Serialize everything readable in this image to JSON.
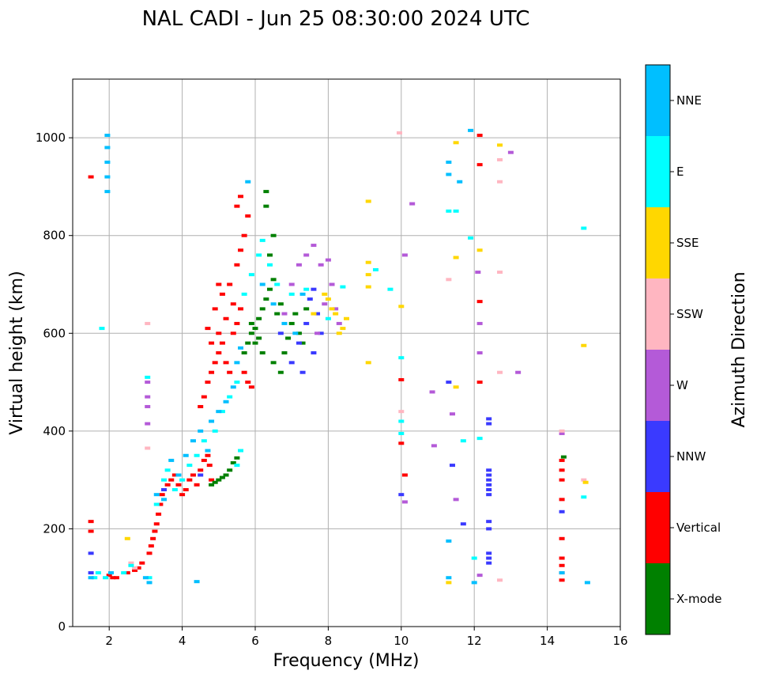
{
  "chart_data": {
    "type": "scatter",
    "title": "NAL CADI - Jun 25 08:30:00 2024 UTC",
    "xlabel": "Frequency (MHz)",
    "ylabel": "Virtual height (km)",
    "xlim": [
      1,
      16
    ],
    "ylim": [
      0,
      1120
    ],
    "xticks": [
      2,
      4,
      6,
      8,
      10,
      12,
      14,
      16
    ],
    "yticks": [
      0,
      200,
      400,
      600,
      800,
      1000
    ],
    "grid": true,
    "colorbar": {
      "label": "Azimuth Direction",
      "categories": [
        {
          "name": "X-mode",
          "color": "#008000"
        },
        {
          "name": "Vertical",
          "color": "#ff0000"
        },
        {
          "name": "NNW",
          "color": "#3a3aff"
        },
        {
          "name": "W",
          "color": "#b45ad8"
        },
        {
          "name": "SSW",
          "color": "#ffb6c1"
        },
        {
          "name": "SSE",
          "color": "#ffd700"
        },
        {
          "name": "E",
          "color": "#00ffff"
        },
        {
          "name": "NNE",
          "color": "#00bfff"
        }
      ]
    },
    "series": [
      {
        "name": "Vertical",
        "points": [
          [
            1.5,
            920
          ],
          [
            1.5,
            215
          ],
          [
            1.5,
            195
          ],
          [
            2.0,
            105
          ],
          [
            2.1,
            100
          ],
          [
            2.2,
            100
          ],
          [
            2.5,
            110
          ],
          [
            2.7,
            115
          ],
          [
            2.8,
            120
          ],
          [
            2.9,
            130
          ],
          [
            3.1,
            150
          ],
          [
            3.15,
            165
          ],
          [
            3.2,
            180
          ],
          [
            3.25,
            195
          ],
          [
            3.3,
            210
          ],
          [
            3.35,
            230
          ],
          [
            3.4,
            250
          ],
          [
            3.45,
            270
          ],
          [
            3.5,
            280
          ],
          [
            3.6,
            290
          ],
          [
            3.7,
            300
          ],
          [
            3.8,
            310
          ],
          [
            3.9,
            290
          ],
          [
            4.0,
            270
          ],
          [
            4.1,
            280
          ],
          [
            4.2,
            300
          ],
          [
            4.3,
            310
          ],
          [
            4.4,
            290
          ],
          [
            4.5,
            320
          ],
          [
            4.6,
            340
          ],
          [
            4.7,
            350
          ],
          [
            4.75,
            330
          ],
          [
            4.8,
            300
          ],
          [
            4.5,
            450
          ],
          [
            4.6,
            470
          ],
          [
            4.7,
            500
          ],
          [
            4.8,
            520
          ],
          [
            4.9,
            540
          ],
          [
            5.0,
            560
          ],
          [
            5.1,
            580
          ],
          [
            5.2,
            540
          ],
          [
            5.3,
            520
          ],
          [
            5.4,
            600
          ],
          [
            5.5,
            620
          ],
          [
            5.6,
            650
          ],
          [
            5.0,
            600
          ],
          [
            4.8,
            580
          ],
          [
            4.7,
            610
          ],
          [
            4.9,
            650
          ],
          [
            5.1,
            680
          ],
          [
            5.3,
            700
          ],
          [
            5.5,
            740
          ],
          [
            5.6,
            770
          ],
          [
            5.7,
            800
          ],
          [
            5.8,
            840
          ],
          [
            5.5,
            860
          ],
          [
            5.6,
            880
          ],
          [
            5.2,
            630
          ],
          [
            5.4,
            660
          ],
          [
            5.0,
            700
          ],
          [
            5.7,
            520
          ],
          [
            5.8,
            500
          ],
          [
            5.9,
            490
          ],
          [
            10.0,
            505
          ],
          [
            10.0,
            375
          ],
          [
            10.1,
            310
          ],
          [
            12.15,
            1005
          ],
          [
            12.15,
            945
          ],
          [
            12.15,
            665
          ],
          [
            12.15,
            500
          ],
          [
            14.4,
            340
          ],
          [
            14.4,
            320
          ],
          [
            14.4,
            300
          ],
          [
            14.4,
            260
          ],
          [
            14.4,
            180
          ],
          [
            14.4,
            140
          ],
          [
            14.4,
            125
          ],
          [
            14.4,
            110
          ],
          [
            14.4,
            95
          ]
        ]
      },
      {
        "name": "X-mode",
        "points": [
          [
            4.8,
            290
          ],
          [
            4.9,
            295
          ],
          [
            5.0,
            300
          ],
          [
            5.1,
            305
          ],
          [
            5.2,
            310
          ],
          [
            5.3,
            320
          ],
          [
            5.4,
            335
          ],
          [
            5.5,
            345
          ],
          [
            5.7,
            560
          ],
          [
            5.8,
            580
          ],
          [
            5.9,
            600
          ],
          [
            6.0,
            610
          ],
          [
            6.1,
            630
          ],
          [
            6.2,
            650
          ],
          [
            6.3,
            670
          ],
          [
            6.4,
            690
          ],
          [
            6.5,
            710
          ],
          [
            6.4,
            760
          ],
          [
            6.5,
            800
          ],
          [
            6.3,
            890
          ],
          [
            6.3,
            860
          ],
          [
            6.6,
            640
          ],
          [
            6.7,
            660
          ],
          [
            6.8,
            560
          ],
          [
            6.9,
            590
          ],
          [
            7.0,
            620
          ],
          [
            7.1,
            640
          ],
          [
            7.2,
            600
          ],
          [
            7.3,
            580
          ],
          [
            7.4,
            650
          ],
          [
            6.1,
            590
          ],
          [
            5.9,
            620
          ],
          [
            6.0,
            580
          ],
          [
            6.2,
            560
          ],
          [
            6.5,
            540
          ],
          [
            6.7,
            520
          ],
          [
            14.45,
            347
          ]
        ]
      },
      {
        "name": "NNW",
        "points": [
          [
            1.5,
            150
          ],
          [
            1.5,
            110
          ],
          [
            3.5,
            280
          ],
          [
            4.5,
            310
          ],
          [
            6.7,
            600
          ],
          [
            7.0,
            540
          ],
          [
            7.2,
            580
          ],
          [
            7.4,
            620
          ],
          [
            7.5,
            670
          ],
          [
            7.6,
            690
          ],
          [
            7.7,
            640
          ],
          [
            7.8,
            600
          ],
          [
            7.6,
            560
          ],
          [
            7.3,
            520
          ],
          [
            10.0,
            270
          ],
          [
            11.3,
            500
          ],
          [
            11.4,
            330
          ],
          [
            11.7,
            210
          ],
          [
            12.4,
            425
          ],
          [
            12.4,
            415
          ],
          [
            12.4,
            320
          ],
          [
            12.4,
            310
          ],
          [
            12.4,
            300
          ],
          [
            12.4,
            290
          ],
          [
            12.4,
            280
          ],
          [
            12.4,
            270
          ],
          [
            12.4,
            215
          ],
          [
            12.4,
            200
          ],
          [
            12.4,
            150
          ],
          [
            12.4,
            140
          ],
          [
            12.4,
            130
          ],
          [
            14.4,
            235
          ]
        ]
      },
      {
        "name": "W",
        "points": [
          [
            3.05,
            500
          ],
          [
            3.05,
            470
          ],
          [
            3.05,
            450
          ],
          [
            3.05,
            415
          ],
          [
            6.8,
            640
          ],
          [
            7.0,
            700
          ],
          [
            7.2,
            740
          ],
          [
            7.4,
            760
          ],
          [
            7.6,
            780
          ],
          [
            7.8,
            740
          ],
          [
            8.0,
            750
          ],
          [
            8.1,
            700
          ],
          [
            8.2,
            650
          ],
          [
            8.3,
            620
          ],
          [
            7.9,
            660
          ],
          [
            7.7,
            600
          ],
          [
            10.1,
            255
          ],
          [
            10.1,
            760
          ],
          [
            10.3,
            865
          ],
          [
            10.85,
            480
          ],
          [
            10.9,
            370
          ],
          [
            11.4,
            435
          ],
          [
            11.5,
            260
          ],
          [
            12.1,
            725
          ],
          [
            12.15,
            620
          ],
          [
            12.15,
            560
          ],
          [
            12.15,
            105
          ],
          [
            13.0,
            970
          ],
          [
            13.2,
            520
          ],
          [
            14.4,
            395
          ]
        ]
      },
      {
        "name": "SSW",
        "points": [
          [
            3.05,
            620
          ],
          [
            3.05,
            365
          ],
          [
            2.6,
            130
          ],
          [
            2.7,
            120
          ],
          [
            9.95,
            1010
          ],
          [
            10.0,
            440
          ],
          [
            11.3,
            710
          ],
          [
            12.7,
            955
          ],
          [
            12.7,
            910
          ],
          [
            12.7,
            725
          ],
          [
            12.7,
            520
          ],
          [
            12.7,
            95
          ],
          [
            14.4,
            400
          ],
          [
            15.0,
            300
          ]
        ]
      },
      {
        "name": "SSE",
        "points": [
          [
            2.5,
            180
          ],
          [
            8.0,
            670
          ],
          [
            8.1,
            650
          ],
          [
            8.2,
            640
          ],
          [
            8.3,
            600
          ],
          [
            8.4,
            610
          ],
          [
            8.5,
            630
          ],
          [
            9.1,
            870
          ],
          [
            9.1,
            745
          ],
          [
            9.1,
            720
          ],
          [
            9.1,
            695
          ],
          [
            9.1,
            540
          ],
          [
            10.0,
            655
          ],
          [
            11.3,
            90
          ],
          [
            11.5,
            990
          ],
          [
            11.5,
            755
          ],
          [
            11.5,
            490
          ],
          [
            12.15,
            770
          ],
          [
            12.7,
            985
          ],
          [
            15.0,
            575
          ],
          [
            15.05,
            295
          ],
          [
            7.6,
            640
          ],
          [
            7.9,
            680
          ]
        ]
      },
      {
        "name": "E",
        "points": [
          [
            1.8,
            610
          ],
          [
            1.6,
            100
          ],
          [
            1.7,
            110
          ],
          [
            1.9,
            100
          ],
          [
            2.4,
            110
          ],
          [
            2.6,
            125
          ],
          [
            3.05,
            510
          ],
          [
            3.1,
            100
          ],
          [
            3.3,
            250
          ],
          [
            3.5,
            300
          ],
          [
            3.6,
            320
          ],
          [
            3.8,
            280
          ],
          [
            4.0,
            300
          ],
          [
            4.2,
            330
          ],
          [
            4.4,
            350
          ],
          [
            4.6,
            380
          ],
          [
            4.9,
            400
          ],
          [
            5.1,
            440
          ],
          [
            5.3,
            470
          ],
          [
            5.5,
            500
          ],
          [
            5.7,
            680
          ],
          [
            5.9,
            720
          ],
          [
            6.1,
            760
          ],
          [
            6.2,
            790
          ],
          [
            6.4,
            740
          ],
          [
            6.6,
            700
          ],
          [
            7.0,
            680
          ],
          [
            7.4,
            690
          ],
          [
            8.0,
            630
          ],
          [
            8.4,
            695
          ],
          [
            9.3,
            730
          ],
          [
            9.7,
            690
          ],
          [
            10.0,
            550
          ],
          [
            10.0,
            420
          ],
          [
            10.0,
            395
          ],
          [
            11.3,
            850
          ],
          [
            11.5,
            850
          ],
          [
            11.7,
            380
          ],
          [
            11.9,
            795
          ],
          [
            12.0,
            140
          ],
          [
            12.15,
            385
          ],
          [
            15.0,
            815
          ],
          [
            15.0,
            265
          ],
          [
            5.6,
            360
          ],
          [
            5.5,
            330
          ]
        ]
      },
      {
        "name": "NNE",
        "points": [
          [
            1.95,
            1005
          ],
          [
            1.95,
            980
          ],
          [
            1.95,
            950
          ],
          [
            1.95,
            920
          ],
          [
            1.95,
            890
          ],
          [
            1.5,
            100
          ],
          [
            2.05,
            110
          ],
          [
            3.0,
            100
          ],
          [
            3.3,
            270
          ],
          [
            3.5,
            260
          ],
          [
            3.7,
            340
          ],
          [
            3.9,
            310
          ],
          [
            4.1,
            350
          ],
          [
            4.3,
            380
          ],
          [
            4.5,
            400
          ],
          [
            4.7,
            360
          ],
          [
            4.8,
            420
          ],
          [
            5.0,
            440
          ],
          [
            5.2,
            460
          ],
          [
            5.4,
            490
          ],
          [
            5.5,
            540
          ],
          [
            5.6,
            570
          ],
          [
            5.8,
            910
          ],
          [
            6.2,
            700
          ],
          [
            6.5,
            660
          ],
          [
            6.8,
            620
          ],
          [
            7.1,
            600
          ],
          [
            7.3,
            680
          ],
          [
            11.3,
            950
          ],
          [
            11.3,
            925
          ],
          [
            11.3,
            100
          ],
          [
            11.3,
            175
          ],
          [
            11.6,
            910
          ],
          [
            11.9,
            1015
          ],
          [
            12.0,
            90
          ],
          [
            14.4,
            110
          ],
          [
            15.1,
            90
          ],
          [
            4.4,
            92
          ],
          [
            3.1,
            90
          ]
        ]
      }
    ]
  }
}
